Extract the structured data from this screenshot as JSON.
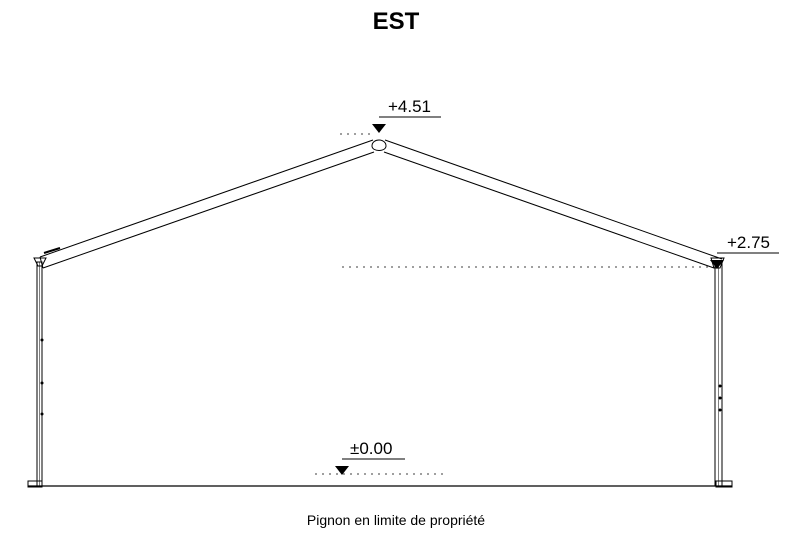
{
  "drawing": {
    "title": "EST",
    "caption": "Pignon en limite de propriété",
    "levels": {
      "ridge": "+4.51",
      "eave": "+2.75",
      "ground": "±0.00"
    }
  }
}
